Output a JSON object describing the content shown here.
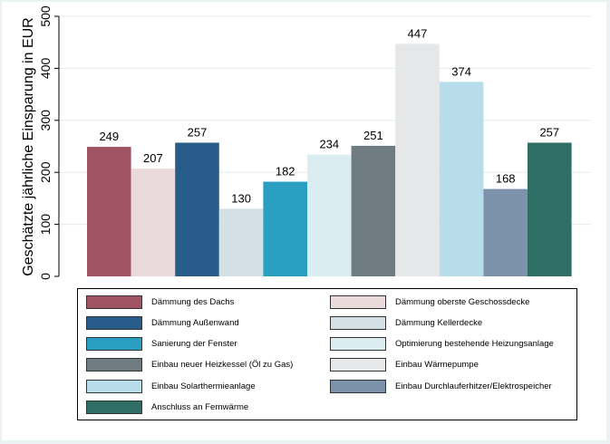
{
  "chart_data": {
    "type": "bar",
    "ylabel": "Geschätzte jährliche Einsparung in EUR",
    "xlabel": "",
    "ylim": [
      0,
      500
    ],
    "yticks": [
      0,
      100,
      200,
      300,
      400,
      500
    ],
    "grid": true,
    "legend_position": "bottom",
    "series": [
      {
        "name": "Dämmung des Dachs",
        "value": 249,
        "color": "#a05363"
      },
      {
        "name": "Dämmung oberste Geschossdecke",
        "value": 207,
        "color": "#eadadc"
      },
      {
        "name": "Dämmung Außenwand",
        "value": 257,
        "color": "#285c8a"
      },
      {
        "name": "Dämmung Kellerdecke",
        "value": 130,
        "color": "#d5e0e6"
      },
      {
        "name": "Sanierung der Fenster",
        "value": 182,
        "color": "#2a9fc2"
      },
      {
        "name": "Optimierung bestehende Heizungsanlage",
        "value": 234,
        "color": "#dcedf1"
      },
      {
        "name": "Einbau neuer Heizkessel (Öl zu Gas)",
        "value": 251,
        "color": "#6e7b80"
      },
      {
        "name": "Einbau Wärmepumpe",
        "value": 447,
        "color": "#e6e7e8"
      },
      {
        "name": "Einbau Solarthermieanlage",
        "value": 374,
        "color": "#b6dde9"
      },
      {
        "name": "Einbau Durchlauferhitzer/Elektrospeicher",
        "value": 168,
        "color": "#7c92aa"
      },
      {
        "name": "Anschluss an Fernwärme",
        "value": 257,
        "color": "#2e6e64"
      }
    ]
  }
}
